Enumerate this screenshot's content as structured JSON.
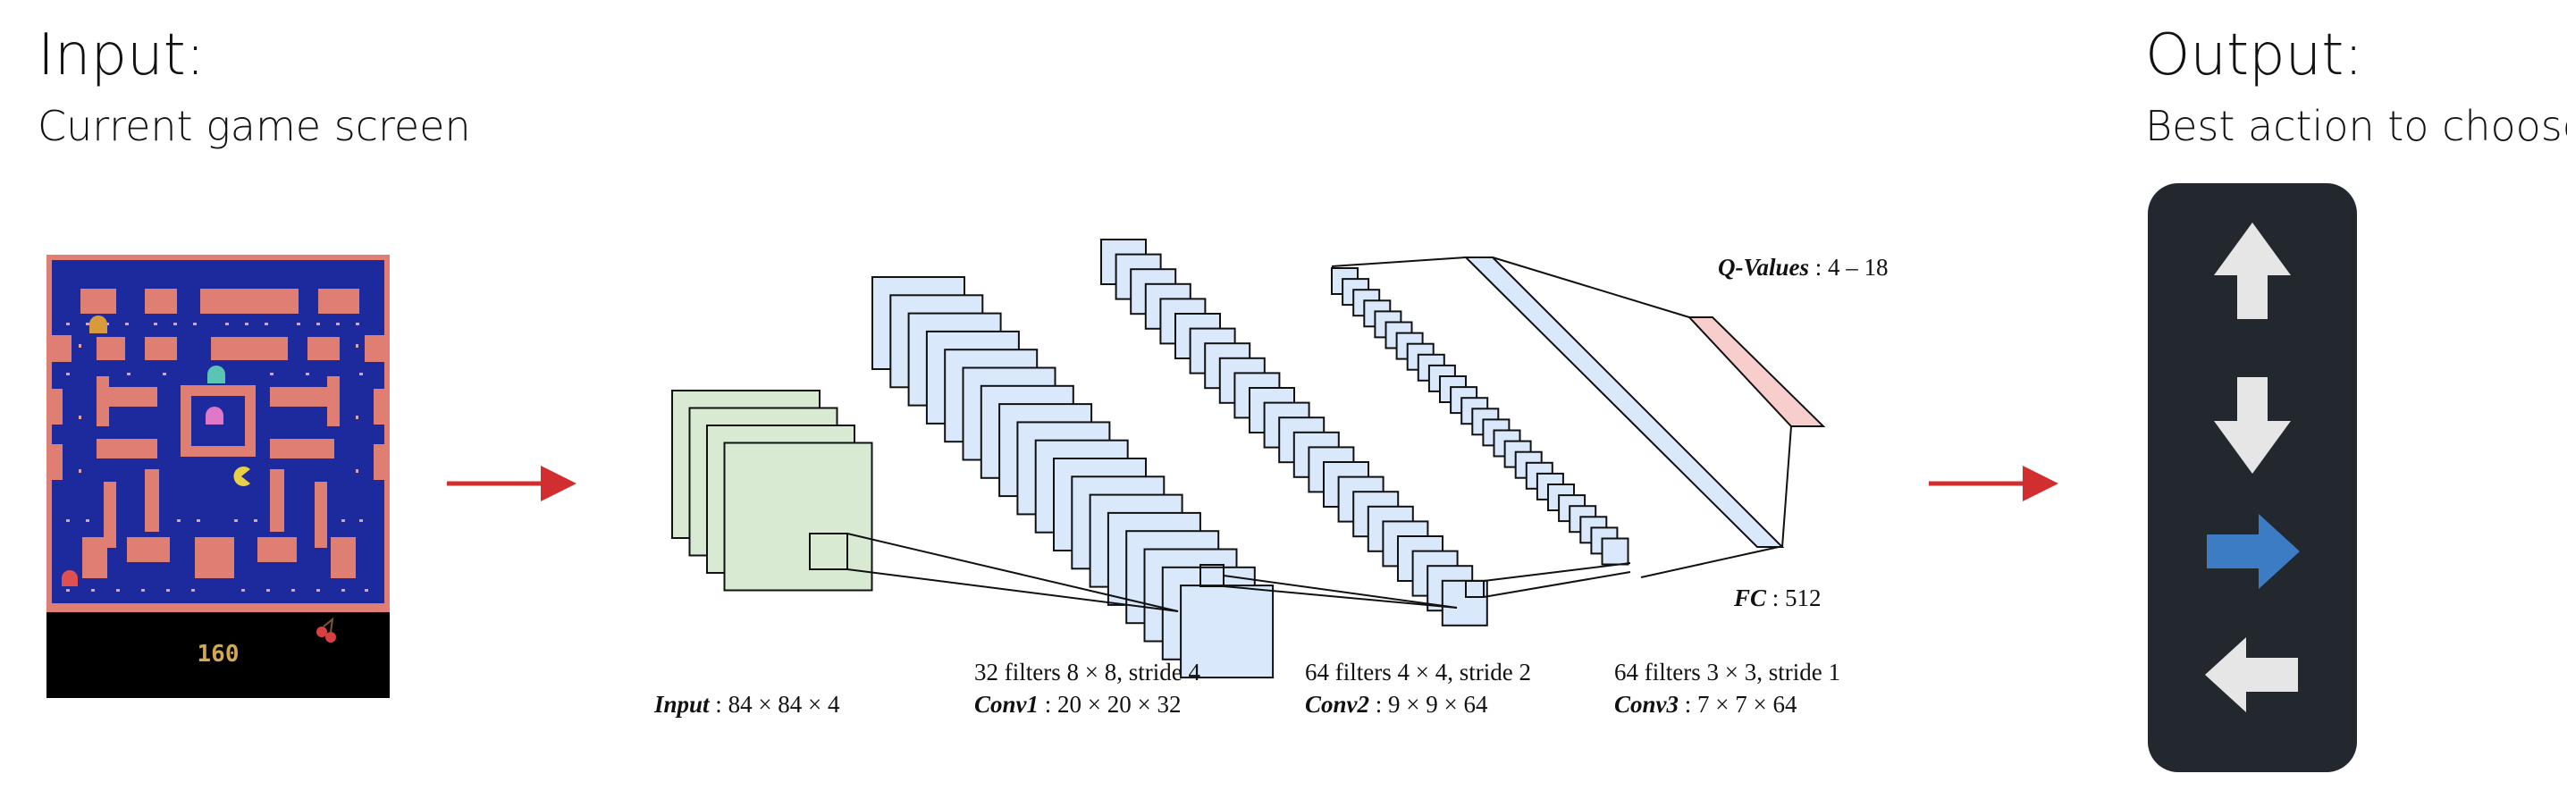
{
  "input": {
    "title": "Input:",
    "subtitle": "Current game screen",
    "score": "160"
  },
  "output": {
    "title": "Output:",
    "subtitle": "Best action to choose"
  },
  "actions": [
    {
      "name": "up",
      "icon": "arrow-up-icon",
      "color": "#e6e6e6",
      "selected": false
    },
    {
      "name": "down",
      "icon": "arrow-down-icon",
      "color": "#e6e6e6",
      "selected": false
    },
    {
      "name": "right",
      "icon": "arrow-right-icon",
      "color": "#3c7cc4",
      "selected": true
    },
    {
      "name": "left",
      "icon": "arrow-left-icon",
      "color": "#e6e6e6",
      "selected": false
    }
  ],
  "network": {
    "input_layer": {
      "name": "Input",
      "shape": "84 × 84 × 4"
    },
    "conv1": {
      "filters": "32 filters 8 × 8,  stride 4",
      "name": "Conv1",
      "shape": "20 × 20 × 32"
    },
    "conv2": {
      "filters": "64 filters 4 × 4,  stride 2",
      "name": "Conv2",
      "shape": "9 × 9 × 64"
    },
    "conv3": {
      "filters": "64 filters 3 × 3,  stride 1",
      "name": "Conv3",
      "shape": "7 × 7 × 64"
    },
    "fc": {
      "name": "FC",
      "value": "512"
    },
    "qvalues": {
      "name": "Q-Values",
      "value": "4 – 18"
    }
  },
  "colors": {
    "input_fill": "#d9ead3",
    "conv_fill": "#dae8fc",
    "qvalues_fill": "#f8cecc",
    "flow_arrow": "#d12f2f",
    "maze_bg": "#1c2a9e",
    "maze_wall": "#df7f74"
  }
}
